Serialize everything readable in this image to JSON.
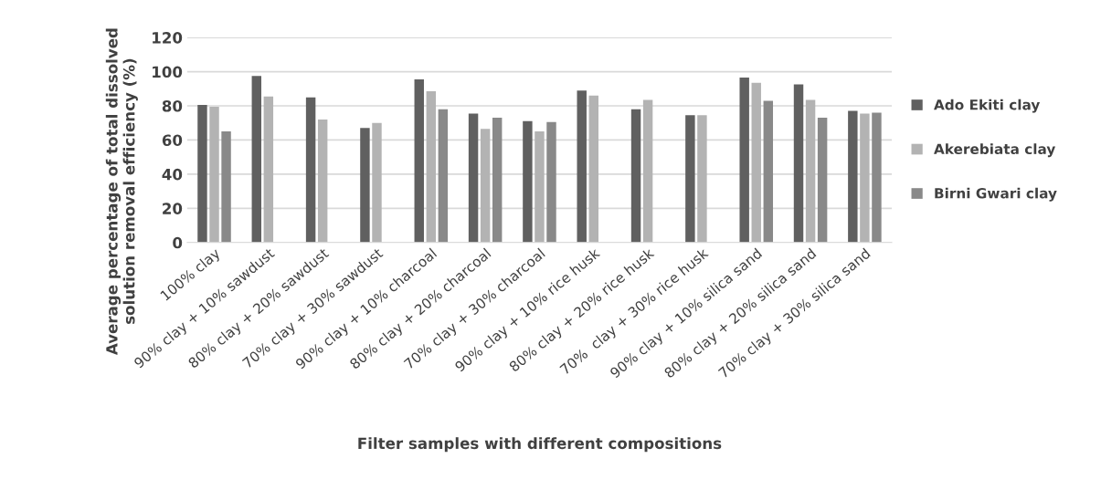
{
  "chart_data": {
    "type": "bar",
    "xlabel": "Filter samples with different compositions",
    "ylabel": "Average percentage of total dissolved solution removal efficiency (%)",
    "categories": [
      "100% clay",
      "90% clay + 10% sawdust",
      "80% clay + 20% sawdust",
      "70% clay + 30% sawdust",
      "90% clay + 10% charcoal",
      "80% clay + 20% charcoal",
      "70% clay + 30% charcoal",
      "90% clay + 10% rice husk",
      "80% clay + 20% rice husk",
      "70%  clay + 30% rice husk",
      "90% clay + 10% silica sand",
      "80% clay + 20% silica sand",
      "70% clay + 30% silica sand"
    ],
    "series": [
      {
        "name": "Ado Ekiti clay",
        "color": "#606060",
        "values": [
          80.5,
          97.5,
          85,
          67,
          95.5,
          75.5,
          71,
          89,
          78,
          74.5,
          96.5,
          92.5,
          77
        ]
      },
      {
        "name": "Akerebiata clay",
        "color": "#b3b3b3",
        "values": [
          79.5,
          85.5,
          72,
          70,
          88.5,
          66.5,
          65,
          86,
          83.5,
          74.5,
          93.5,
          83.5,
          75.5
        ]
      },
      {
        "name": "Birni Gwari clay",
        "color": "#898989",
        "values": [
          65,
          null,
          null,
          null,
          78,
          73,
          70.5,
          null,
          null,
          null,
          83,
          73,
          76
        ]
      }
    ],
    "ylim": [
      0,
      120
    ],
    "yticks": [
      0,
      20,
      40,
      60,
      80,
      100,
      120
    ],
    "grid": "y",
    "legend": "right"
  }
}
